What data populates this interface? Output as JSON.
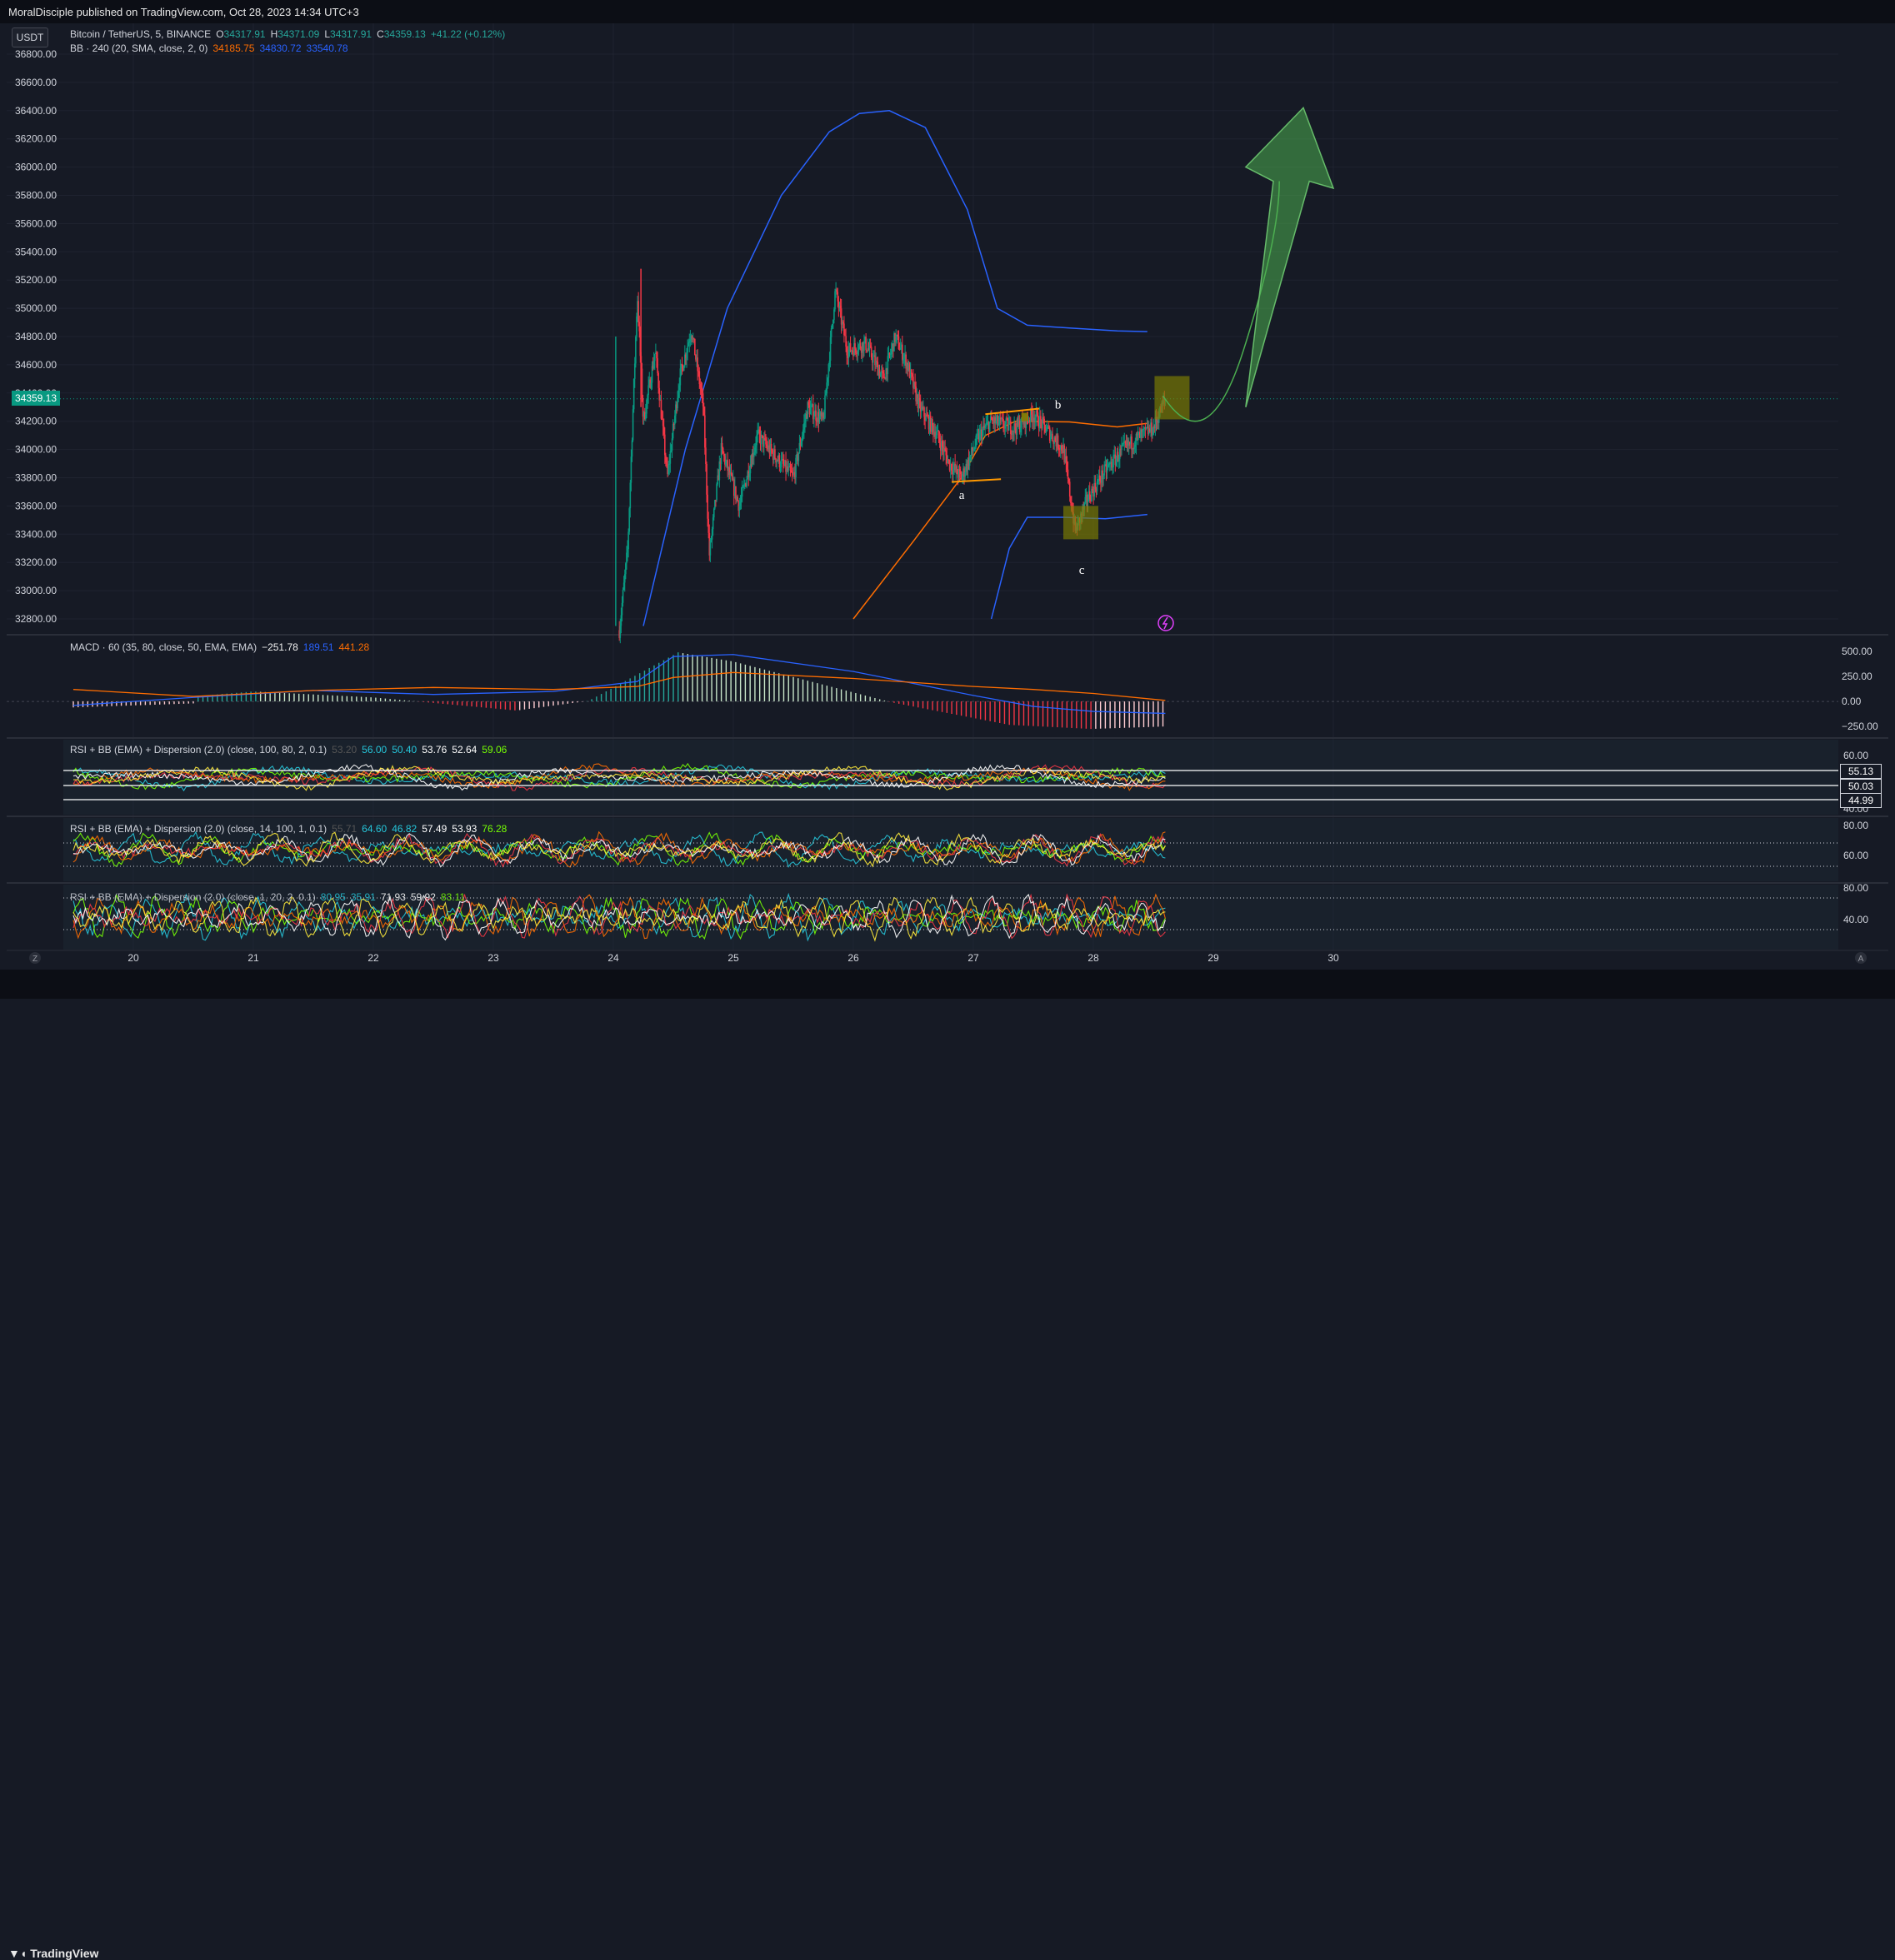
{
  "header": {
    "published": "MoralDisciple published on TradingView.com, Oct 28, 2023 14:34 UTC+3",
    "unit_button": "USDT"
  },
  "legend_main": {
    "symbol": "Bitcoin / TetherUS, 5, BINANCE",
    "open_label": "O",
    "open": "34317.91",
    "high_label": "H",
    "high": "34371.09",
    "low_label": "L",
    "low": "34317.91",
    "close_label": "C",
    "close": "34359.13",
    "change": "+41.22 (+0.12%)"
  },
  "legend_bb": {
    "name": "BB · 240 (20, SMA, close, 2, 0)",
    "basis": "34185.75",
    "upper": "34830.72",
    "lower": "33540.78"
  },
  "legend_macd": {
    "name": "MACD · 60 (35, 80, close, 50, EMA, EMA)",
    "hist": "−251.78",
    "macd": "189.51",
    "signal": "441.28"
  },
  "legend_rsi1": {
    "name": "RSI + BB (EMA) + Dispersion (2.0) (close, 100, 80, 2, 0.1)",
    "v0": "53.20",
    "v1": "56.00",
    "v2": "50.40",
    "v3": "53.76",
    "v4": "52.64",
    "v5": "59.06"
  },
  "legend_rsi2": {
    "name": "RSI + BB (EMA) + Dispersion (2.0) (close, 14, 100, 1, 0.1)",
    "v0": "55.71",
    "v1": "64.60",
    "v2": "46.82",
    "v3": "57.49",
    "v4": "53.93",
    "v5": "76.28"
  },
  "legend_rsi3": {
    "name": "RSI + BB (EMA) + Dispersion (2.0) (close, 1, 20, 2, 0.1)",
    "v1": "80.95",
    "v2": "35.91",
    "v3": "71.93",
    "v4": "59.92",
    "v5": "83.11"
  },
  "price_axis": {
    "ticks": [
      "36800.00",
      "36600.00",
      "36400.00",
      "36200.00",
      "36000.00",
      "35800.00",
      "35600.00",
      "35400.00",
      "35200.00",
      "35000.00",
      "34800.00",
      "34600.00",
      "34400.00",
      "34200.00",
      "34000.00",
      "33800.00",
      "33600.00",
      "33400.00",
      "33200.00",
      "33000.00",
      "32800.00"
    ],
    "current_price": "34359.13"
  },
  "macd_axis": {
    "ticks": [
      "500.00",
      "250.00",
      "0.00",
      "−250.00"
    ]
  },
  "rsi1_axis": {
    "ticks": [
      "60.00",
      "40.00"
    ],
    "tags": [
      "55.13",
      "50.03",
      "44.99"
    ]
  },
  "rsi2_axis": {
    "ticks": [
      "80.00",
      "60.00"
    ]
  },
  "rsi3_axis": {
    "ticks": [
      "80.00",
      "40.00"
    ]
  },
  "time_axis": {
    "labels": [
      "20",
      "21",
      "22",
      "23",
      "24",
      "25",
      "26",
      "27",
      "28",
      "29",
      "30"
    ],
    "left_btn": "Z",
    "right_btn": "A"
  },
  "annotations": {
    "a": "a",
    "b": "b",
    "c": "c"
  },
  "footer": {
    "logo": "TradingView"
  },
  "chart_data": {
    "type": "candlestick",
    "symbol": "Bitcoin / TetherUS",
    "timeframe": "5",
    "x_range_days": [
      19.5,
      30.5
    ],
    "ylim": [
      32700,
      36880
    ],
    "key_prices": {
      "spike_high": 35280,
      "spike_low": 32720,
      "day25_high": 35130,
      "wave_a_low": 33770,
      "wave_b_high": 34260,
      "wave_c_low": 33420,
      "last_close": 34359.13
    },
    "bollinger_240": {
      "upper_peak": 36400,
      "upper_flat": 34830,
      "basis": 34185,
      "lower": 33540
    },
    "macd": {
      "hist": -251.78,
      "macd": 189.51,
      "signal": 441.28,
      "ylim": [
        -300,
        560
      ]
    },
    "colors": {
      "background": "#161a25",
      "up": "#089981",
      "down": "#f23645",
      "bb_upper_lower": "#2962ff",
      "bb_basis": "#ff6d00",
      "arrow": "#4caf50",
      "box": "#808000"
    }
  }
}
